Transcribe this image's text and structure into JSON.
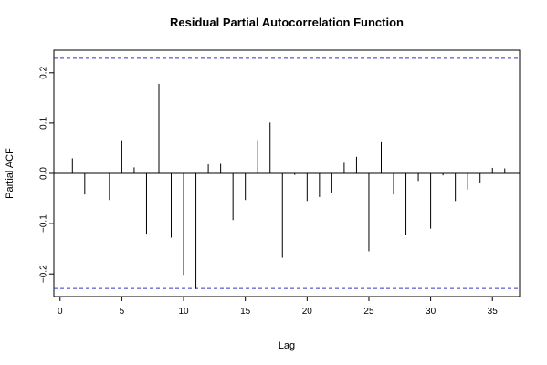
{
  "chart_data": {
    "type": "bar",
    "title": "Residual Partial Autocorrelation Function",
    "xlabel": "Lag",
    "ylabel": "Partial ACF",
    "xlim": [
      -0.5,
      37.2
    ],
    "ylim": [
      -0.245,
      0.245
    ],
    "x_ticks": [
      0,
      5,
      10,
      15,
      20,
      25,
      30,
      35
    ],
    "y_ticks": [
      -0.2,
      -0.1,
      0.0,
      0.1,
      0.2
    ],
    "x_tick_labels": [
      "0",
      "5",
      "10",
      "15",
      "20",
      "25",
      "30",
      "35"
    ],
    "y_tick_labels": [
      "−0.2",
      "−0.1",
      "0.0",
      "0.1",
      "0.2"
    ],
    "confidence_bounds": [
      0.229,
      -0.229
    ],
    "confidence_color": "#3333cc",
    "lags": [
      1,
      2,
      3,
      4,
      5,
      6,
      7,
      8,
      9,
      10,
      11,
      12,
      13,
      14,
      15,
      16,
      17,
      18,
      19,
      20,
      21,
      22,
      23,
      24,
      25,
      26,
      27,
      28,
      29,
      30,
      31,
      32,
      33,
      34,
      35,
      36
    ],
    "values": [
      0.03,
      -0.042,
      0.0,
      -0.053,
      0.066,
      0.012,
      -0.12,
      0.178,
      -0.128,
      -0.202,
      -0.23,
      0.018,
      0.019,
      -0.093,
      -0.053,
      0.066,
      0.101,
      -0.168,
      -0.003,
      -0.055,
      -0.047,
      -0.038,
      0.021,
      0.033,
      -0.155,
      0.062,
      -0.042,
      -0.122,
      -0.015,
      -0.11,
      -0.004,
      -0.055,
      -0.032,
      -0.018,
      0.011,
      0.01
    ],
    "grid": false
  }
}
